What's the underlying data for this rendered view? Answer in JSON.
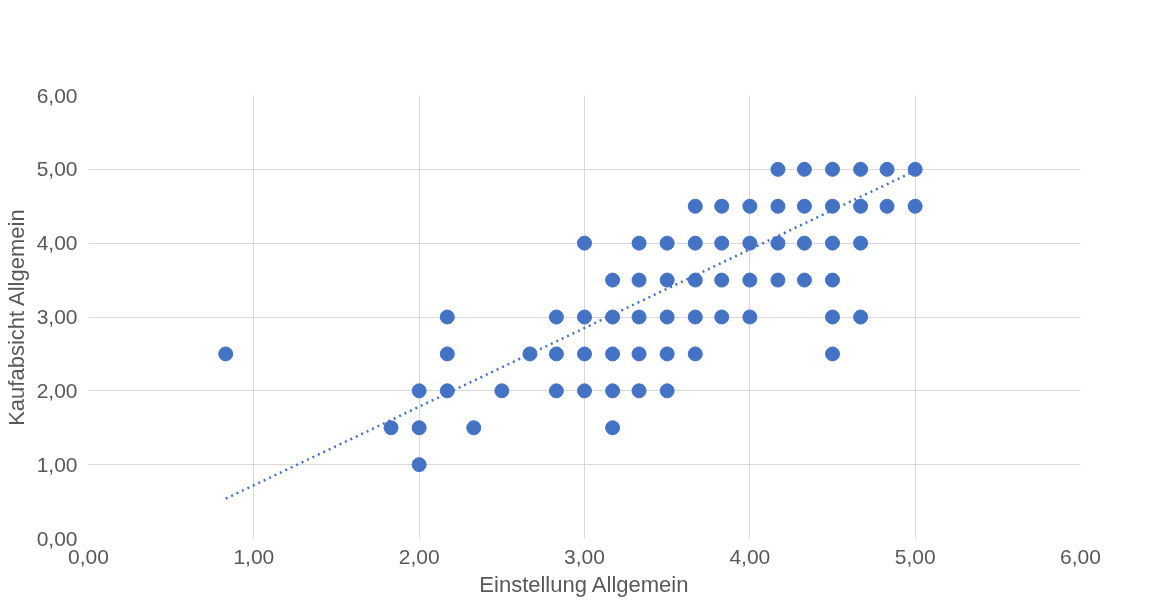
{
  "chart_data": {
    "type": "scatter",
    "xlabel": "Einstellung Allgemein",
    "ylabel": "Kaufabsicht Allgemein",
    "xlim": [
      0,
      6
    ],
    "ylim": [
      0,
      6
    ],
    "xticks": [
      {
        "value": 0,
        "label": "0,00"
      },
      {
        "value": 1,
        "label": "1,00"
      },
      {
        "value": 2,
        "label": "2,00"
      },
      {
        "value": 3,
        "label": "3,00"
      },
      {
        "value": 4,
        "label": "4,00"
      },
      {
        "value": 5,
        "label": "5,00"
      },
      {
        "value": 6,
        "label": "6,00"
      }
    ],
    "yticks": [
      {
        "value": 0,
        "label": "0,00"
      },
      {
        "value": 1,
        "label": "1,00"
      },
      {
        "value": 2,
        "label": "2,00"
      },
      {
        "value": 3,
        "label": "3,00"
      },
      {
        "value": 4,
        "label": "4,00"
      },
      {
        "value": 5,
        "label": "5,00"
      },
      {
        "value": 6,
        "label": "6,00"
      }
    ],
    "grid": true,
    "marker": "circle",
    "series": [
      {
        "color": "#4472c4",
        "x": [
          0.83,
          1.83,
          2.0,
          2.0,
          2.0,
          2.17,
          2.17,
          2.17,
          2.33,
          2.5,
          2.67,
          2.83,
          2.83,
          2.83,
          3.0,
          3.0,
          3.0,
          3.0,
          3.17,
          3.17,
          3.17,
          3.17,
          3.17,
          3.33,
          3.33,
          3.33,
          3.33,
          3.33,
          3.5,
          3.5,
          3.5,
          3.5,
          3.5,
          3.67,
          3.67,
          3.67,
          3.67,
          3.67,
          3.83,
          3.83,
          3.83,
          3.83,
          4.0,
          4.0,
          4.0,
          4.0,
          4.17,
          4.17,
          4.17,
          4.17,
          4.33,
          4.33,
          4.33,
          4.33,
          4.5,
          4.5,
          4.5,
          4.5,
          4.5,
          4.5,
          4.67,
          4.67,
          4.67,
          4.67,
          4.83,
          4.83,
          5.0,
          5.0
        ],
        "values": [
          2.5,
          1.5,
          2.0,
          1.5,
          1.0,
          3.0,
          2.5,
          2.0,
          1.5,
          2.0,
          2.5,
          3.0,
          2.5,
          2.0,
          4.0,
          3.0,
          2.5,
          2.0,
          3.5,
          3.0,
          2.5,
          2.0,
          1.5,
          4.0,
          3.5,
          3.0,
          2.5,
          2.0,
          4.0,
          3.5,
          3.0,
          2.5,
          2.0,
          4.5,
          4.0,
          3.5,
          3.0,
          2.5,
          4.5,
          4.0,
          3.5,
          3.0,
          4.5,
          4.0,
          3.5,
          3.0,
          5.0,
          4.5,
          4.0,
          3.5,
          5.0,
          4.5,
          4.0,
          3.5,
          5.0,
          4.5,
          4.0,
          3.5,
          3.0,
          2.5,
          5.0,
          4.5,
          4.0,
          3.0,
          5.0,
          4.5,
          5.0,
          4.5
        ]
      },
      {
        "type": "line",
        "color": "#4472c4",
        "line_style": "dotted",
        "marker": "none",
        "x": [
          0.83,
          5.0
        ],
        "values": [
          0.54,
          4.98
        ]
      }
    ]
  }
}
